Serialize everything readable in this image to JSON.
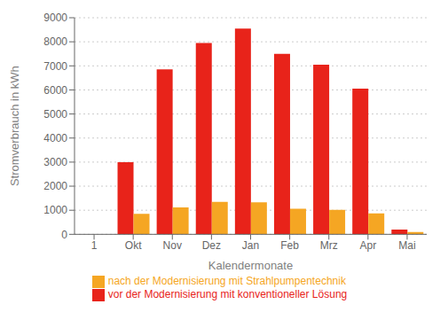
{
  "chart_data": {
    "type": "bar",
    "xlabel": "Kalendermonate",
    "ylabel": "Stromverbrauch in kWh",
    "categories": [
      "1",
      "Okt",
      "Nov",
      "Dez",
      "Jan",
      "Feb",
      "Mrz",
      "Apr",
      "Mai"
    ],
    "series": [
      {
        "name": "vor der Modernisierung mit konventioneller Lösung",
        "color": "#e8231a",
        "values": [
          null,
          3000,
          6850,
          7950,
          8550,
          7500,
          7050,
          6050,
          200
        ]
      },
      {
        "name": "nach der Modernisierung mit Strahlpumpentechnik",
        "color": "#f5a623",
        "values": [
          null,
          850,
          1120,
          1350,
          1330,
          1060,
          1020,
          870,
          100
        ]
      }
    ],
    "ylim": [
      0,
      9000
    ],
    "yticks": [
      0,
      1000,
      2000,
      3000,
      4000,
      5000,
      6000,
      7000,
      8000,
      9000
    ],
    "grid": true,
    "legend": "bottom"
  }
}
